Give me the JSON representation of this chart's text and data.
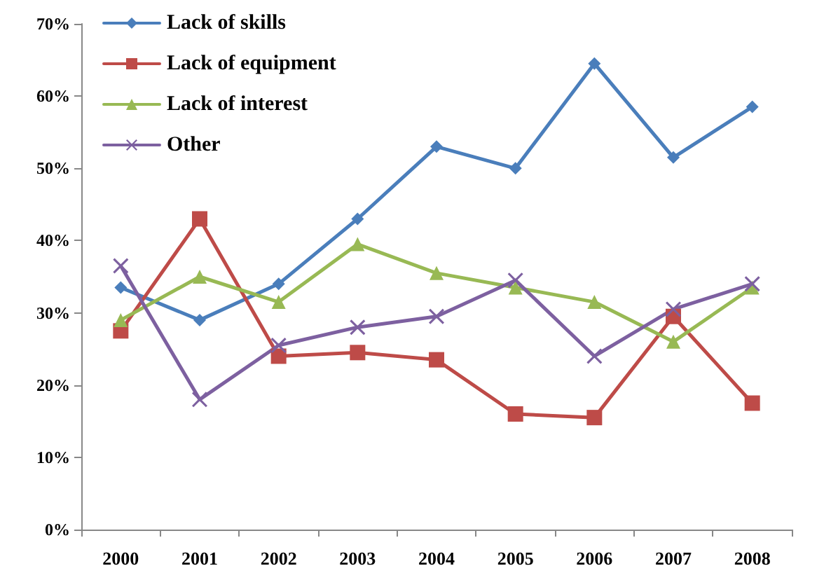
{
  "chart_data": {
    "type": "line",
    "categories": [
      "2000",
      "2001",
      "2002",
      "2003",
      "2004",
      "2005",
      "2006",
      "2007",
      "2008"
    ],
    "series": [
      {
        "name": "Lack of skills",
        "color": "#4a7ebb",
        "marker": "diamond",
        "values": [
          33.5,
          29,
          34,
          43,
          53,
          50,
          64.5,
          51.5,
          58.5
        ]
      },
      {
        "name": "Lack of equipment",
        "color": "#be4b48",
        "marker": "square",
        "values": [
          27.5,
          43,
          24,
          24.5,
          23.5,
          16,
          15.5,
          29.5,
          17.5
        ]
      },
      {
        "name": "Lack of interest",
        "color": "#98b954",
        "marker": "triangle",
        "values": [
          29,
          35,
          31.5,
          39.5,
          35.5,
          33.5,
          31.5,
          26,
          33.5
        ]
      },
      {
        "name": "Other",
        "color": "#7d60a0",
        "marker": "cross",
        "values": [
          36.5,
          18,
          25.5,
          28,
          29.5,
          34.5,
          24,
          30.5,
          34
        ]
      }
    ],
    "ylim": [
      0,
      70
    ],
    "yticks": [
      {
        "value": 0,
        "label": "0%"
      },
      {
        "value": 10,
        "label": "10%"
      },
      {
        "value": 20,
        "label": "20%"
      },
      {
        "value": 30,
        "label": "30%"
      },
      {
        "value": 40,
        "label": "40%"
      },
      {
        "value": 50,
        "label": "50%"
      },
      {
        "value": 60,
        "label": "60%"
      },
      {
        "value": 70,
        "label": "70%"
      }
    ],
    "grid": false,
    "legend": "top left",
    "line_style": "solid"
  }
}
